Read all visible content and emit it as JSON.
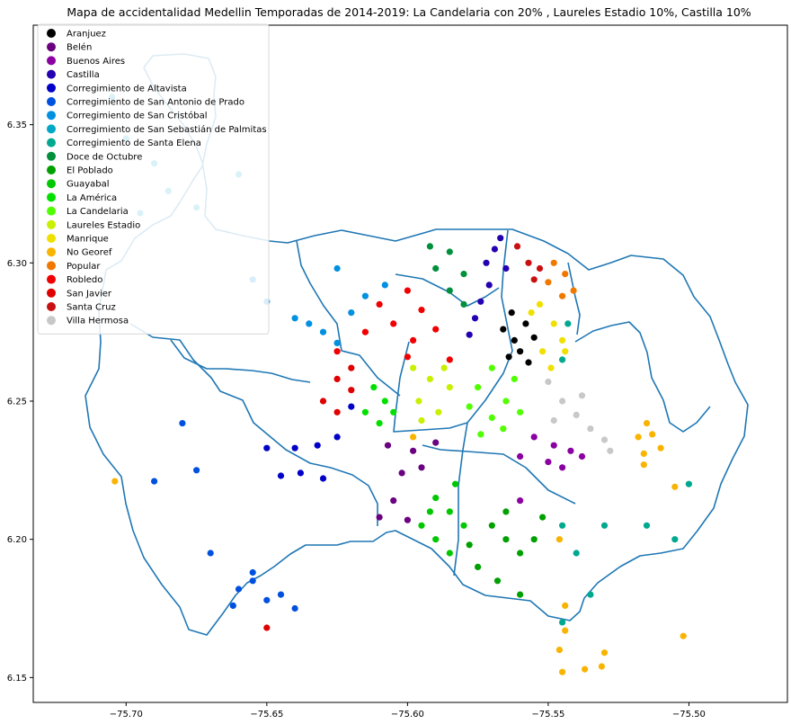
{
  "chart_data": {
    "type": "scatter",
    "title": "Mapa de accidentalidad Medellin Temporadas de 2014-2019: La Candelaria con 20% , Laureles Estadio 10%, Castilla 10%",
    "xlabel": "",
    "ylabel": "",
    "xlim": [
      -75.733,
      -75.465
    ],
    "ylim": [
      6.141,
      6.386
    ],
    "x_ticks": [
      -75.7,
      -75.65,
      -75.6,
      -75.55,
      -75.5
    ],
    "x_tick_labels": [
      "−75.70",
      "−75.65",
      "−75.60",
      "−75.55",
      "−75.50"
    ],
    "y_ticks": [
      6.15,
      6.2,
      6.25,
      6.3,
      6.35
    ],
    "y_tick_labels": [
      "6.15",
      "6.20",
      "6.25",
      "6.30",
      "6.35"
    ],
    "grid": false,
    "legend_position": "top-left",
    "boundary_color": "#1f77b4",
    "series": [
      {
        "name": "Aranjuez",
        "color": "#000000",
        "points": [
          [
            -75.563,
            6.282
          ],
          [
            -75.558,
            6.278
          ],
          [
            -75.562,
            6.272
          ],
          [
            -75.566,
            6.276
          ],
          [
            -75.56,
            6.268
          ],
          [
            -75.557,
            6.264
          ],
          [
            -75.564,
            6.266
          ],
          [
            -75.555,
            6.273
          ]
        ]
      },
      {
        "name": "Belén",
        "color": "#6a0080",
        "points": [
          [
            -75.607,
            6.234
          ],
          [
            -75.598,
            6.232
          ],
          [
            -75.59,
            6.235
          ],
          [
            -75.602,
            6.224
          ],
          [
            -75.595,
            6.226
          ],
          [
            -75.605,
            6.214
          ],
          [
            -75.6,
            6.207
          ],
          [
            -75.61,
            6.208
          ]
        ]
      },
      {
        "name": "Buenos Aires",
        "color": "#8a00a0",
        "points": [
          [
            -75.555,
            6.237
          ],
          [
            -75.548,
            6.234
          ],
          [
            -75.542,
            6.232
          ],
          [
            -75.538,
            6.23
          ],
          [
            -75.56,
            6.23
          ],
          [
            -75.55,
            6.228
          ],
          [
            -75.545,
            6.226
          ],
          [
            -75.56,
            6.214
          ]
        ]
      },
      {
        "name": "Castilla",
        "color": "#2400b0",
        "points": [
          [
            -75.569,
            6.305
          ],
          [
            -75.565,
            6.298
          ],
          [
            -75.571,
            6.292
          ],
          [
            -75.574,
            6.286
          ],
          [
            -75.576,
            6.28
          ],
          [
            -75.578,
            6.274
          ],
          [
            -75.567,
            6.309
          ],
          [
            -75.572,
            6.3
          ]
        ]
      },
      {
        "name": "Corregimiento de Altavista",
        "color": "#0000c8",
        "points": [
          [
            -75.632,
            6.234
          ],
          [
            -75.64,
            6.233
          ],
          [
            -75.65,
            6.233
          ],
          [
            -75.645,
            6.223
          ],
          [
            -75.638,
            6.224
          ],
          [
            -75.63,
            6.222
          ],
          [
            -75.62,
            6.248
          ],
          [
            -75.625,
            6.237
          ]
        ]
      },
      {
        "name": "Corregimiento de San Antonio de Prado",
        "color": "#0050e0",
        "points": [
          [
            -75.66,
            6.182
          ],
          [
            -75.655,
            6.185
          ],
          [
            -75.65,
            6.178
          ],
          [
            -75.645,
            6.18
          ],
          [
            -75.64,
            6.175
          ],
          [
            -75.662,
            6.176
          ],
          [
            -75.655,
            6.188
          ],
          [
            -75.67,
            6.195
          ],
          [
            -75.675,
            6.225
          ],
          [
            -75.68,
            6.242
          ],
          [
            -75.69,
            6.221
          ]
        ]
      },
      {
        "name": "Corregimiento de San Cristóbal",
        "color": "#0090e0",
        "points": [
          [
            -75.64,
            6.28
          ],
          [
            -75.635,
            6.278
          ],
          [
            -75.63,
            6.275
          ],
          [
            -75.625,
            6.271
          ],
          [
            -75.62,
            6.282
          ],
          [
            -75.615,
            6.288
          ],
          [
            -75.608,
            6.292
          ],
          [
            -75.65,
            6.286
          ],
          [
            -75.655,
            6.294
          ],
          [
            -75.625,
            6.298
          ]
        ]
      },
      {
        "name": "Corregimiento de San Sebastián de Palmitas",
        "color": "#00a8c8",
        "points": [
          [
            -75.705,
            6.36
          ],
          [
            -75.7,
            6.345
          ],
          [
            -75.69,
            6.336
          ],
          [
            -75.685,
            6.326
          ],
          [
            -75.675,
            6.32
          ],
          [
            -75.66,
            6.332
          ],
          [
            -75.695,
            6.318
          ]
        ]
      },
      {
        "name": "Corregimiento de Santa Elena",
        "color": "#00a890",
        "points": [
          [
            -75.545,
            6.205
          ],
          [
            -75.54,
            6.195
          ],
          [
            -75.535,
            6.18
          ],
          [
            -75.53,
            6.205
          ],
          [
            -75.515,
            6.205
          ],
          [
            -75.505,
            6.2
          ],
          [
            -75.5,
            6.22
          ],
          [
            -75.545,
            6.265
          ],
          [
            -75.543,
            6.278
          ],
          [
            -75.545,
            6.17
          ]
        ]
      },
      {
        "name": "Doce de Octubre",
        "color": "#00903c",
        "points": [
          [
            -75.585,
            6.304
          ],
          [
            -75.59,
            6.298
          ],
          [
            -75.585,
            6.29
          ],
          [
            -75.58,
            6.296
          ],
          [
            -75.592,
            6.306
          ],
          [
            -75.58,
            6.285
          ]
        ]
      },
      {
        "name": "El Poblado",
        "color": "#00a000",
        "points": [
          [
            -75.57,
            6.205
          ],
          [
            -75.565,
            6.2
          ],
          [
            -75.56,
            6.195
          ],
          [
            -75.555,
            6.2
          ],
          [
            -75.575,
            6.19
          ],
          [
            -75.568,
            6.185
          ],
          [
            -75.56,
            6.18
          ],
          [
            -75.578,
            6.198
          ],
          [
            -75.565,
            6.21
          ],
          [
            -75.552,
            6.208
          ]
        ]
      },
      {
        "name": "Guayabal",
        "color": "#00c800",
        "points": [
          [
            -75.583,
            6.22
          ],
          [
            -75.59,
            6.215
          ],
          [
            -75.585,
            6.21
          ],
          [
            -75.595,
            6.205
          ],
          [
            -75.59,
            6.2
          ],
          [
            -75.58,
            6.205
          ],
          [
            -75.585,
            6.195
          ],
          [
            -75.592,
            6.21
          ]
        ]
      },
      {
        "name": "La América",
        "color": "#00e000",
        "points": [
          [
            -75.612,
            6.255
          ],
          [
            -75.608,
            6.25
          ],
          [
            -75.605,
            6.246
          ],
          [
            -75.615,
            6.246
          ],
          [
            -75.61,
            6.242
          ]
        ]
      },
      {
        "name": "La Candelaria",
        "color": "#50ff00",
        "points": [
          [
            -75.57,
            6.262
          ],
          [
            -75.562,
            6.258
          ],
          [
            -75.575,
            6.255
          ],
          [
            -75.565,
            6.25
          ],
          [
            -75.578,
            6.248
          ],
          [
            -75.57,
            6.244
          ],
          [
            -75.56,
            6.246
          ],
          [
            -75.574,
            6.238
          ],
          [
            -75.566,
            6.24
          ]
        ]
      },
      {
        "name": "Laureles Estadio",
        "color": "#c8f000",
        "points": [
          [
            -75.598,
            6.262
          ],
          [
            -75.592,
            6.258
          ],
          [
            -75.585,
            6.255
          ],
          [
            -75.596,
            6.25
          ],
          [
            -75.589,
            6.246
          ],
          [
            -75.595,
            6.243
          ],
          [
            -75.587,
            6.262
          ]
        ]
      },
      {
        "name": "Manrique",
        "color": "#f0e000",
        "points": [
          [
            -75.553,
            6.285
          ],
          [
            -75.548,
            6.278
          ],
          [
            -75.545,
            6.272
          ],
          [
            -75.552,
            6.268
          ],
          [
            -75.549,
            6.262
          ],
          [
            -75.556,
            6.282
          ],
          [
            -75.544,
            6.268
          ]
        ]
      },
      {
        "name": "No Georef",
        "color": "#f8b400",
        "points": [
          [
            -75.704,
            6.221
          ],
          [
            -75.515,
            6.242
          ],
          [
            -75.513,
            6.238
          ],
          [
            -75.518,
            6.237
          ],
          [
            -75.516,
            6.231
          ],
          [
            -75.51,
            6.233
          ],
          [
            -75.505,
            6.219
          ],
          [
            -75.516,
            6.227
          ],
          [
            -75.502,
            6.165
          ],
          [
            -75.546,
            6.2
          ],
          [
            -75.544,
            6.176
          ],
          [
            -75.544,
            6.167
          ],
          [
            -75.546,
            6.16
          ],
          [
            -75.545,
            6.152
          ],
          [
            -75.537,
            6.153
          ],
          [
            -75.531,
            6.154
          ],
          [
            -75.53,
            6.159
          ],
          [
            -75.598,
            6.237
          ]
        ]
      },
      {
        "name": "Popular",
        "color": "#f07800",
        "points": [
          [
            -75.548,
            6.3
          ],
          [
            -75.544,
            6.296
          ],
          [
            -75.541,
            6.29
          ],
          [
            -75.545,
            6.288
          ],
          [
            -75.55,
            6.293
          ]
        ]
      },
      {
        "name": "Robledo",
        "color": "#f00000",
        "points": [
          [
            -75.61,
            6.285
          ],
          [
            -75.6,
            6.29
          ],
          [
            -75.595,
            6.283
          ],
          [
            -75.605,
            6.278
          ],
          [
            -75.598,
            6.272
          ],
          [
            -75.59,
            6.276
          ],
          [
            -75.615,
            6.275
          ],
          [
            -75.585,
            6.265
          ],
          [
            -75.625,
            6.268
          ],
          [
            -75.6,
            6.266
          ]
        ]
      },
      {
        "name": "San Javier",
        "color": "#e00000",
        "points": [
          [
            -75.625,
            6.258
          ],
          [
            -75.62,
            6.254
          ],
          [
            -75.63,
            6.25
          ],
          [
            -75.625,
            6.246
          ],
          [
            -75.62,
            6.262
          ],
          [
            -75.65,
            6.168
          ]
        ]
      },
      {
        "name": "Santa Cruz",
        "color": "#c81010",
        "points": [
          [
            -75.561,
            6.306
          ],
          [
            -75.557,
            6.3
          ],
          [
            -75.555,
            6.294
          ],
          [
            -75.553,
            6.298
          ]
        ]
      },
      {
        "name": "Villa Hermosa",
        "color": "#c8c8c8",
        "points": [
          [
            -75.55,
            6.257
          ],
          [
            -75.545,
            6.25
          ],
          [
            -75.54,
            6.245
          ],
          [
            -75.535,
            6.24
          ],
          [
            -75.53,
            6.236
          ],
          [
            -75.528,
            6.232
          ],
          [
            -75.548,
            6.243
          ],
          [
            -75.538,
            6.252
          ]
        ]
      }
    ]
  }
}
